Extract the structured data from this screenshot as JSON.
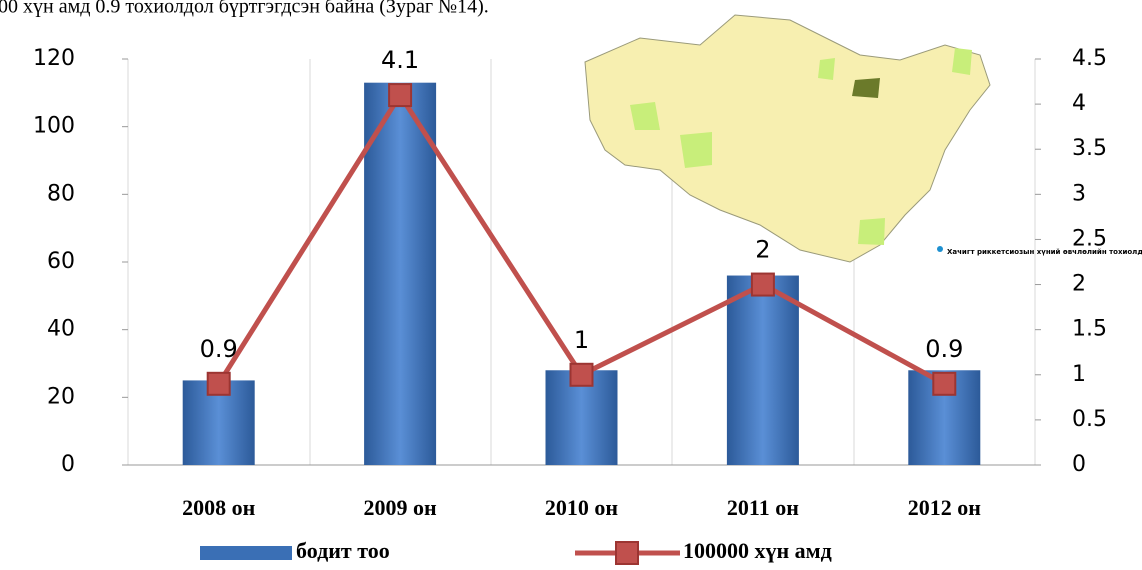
{
  "caption": "00 хүн амд 0.9 тохиолдол бүртгэгдсэн байна (Зураг №14).",
  "map_legend": "Хачигт риккетсиозын хүний өвчлөлийн тохиолдол",
  "chart_data": {
    "type": "bar-line",
    "categories": [
      "2008 он",
      "2009 он",
      "2010 он",
      "2011 он",
      "2012 он"
    ],
    "series": [
      {
        "name": "бодит тоо",
        "type": "bar",
        "color": "#3a6fb5",
        "values": [
          25,
          113,
          28,
          56,
          28
        ]
      },
      {
        "name": "100000 хүн амд",
        "type": "line",
        "axis": "y2",
        "color": "#c0504d",
        "values": [
          0.9,
          4.1,
          1,
          2,
          0.9
        ]
      }
    ],
    "ylim": [
      0,
      120
    ],
    "yticks": [
      0,
      20,
      40,
      60,
      80,
      100,
      120
    ],
    "y2lim": [
      0,
      4.5
    ],
    "y2ticks": [
      0,
      0.5,
      1,
      1.5,
      2,
      2.5,
      3,
      3.5,
      4,
      4.5
    ],
    "legend": "bottom"
  }
}
